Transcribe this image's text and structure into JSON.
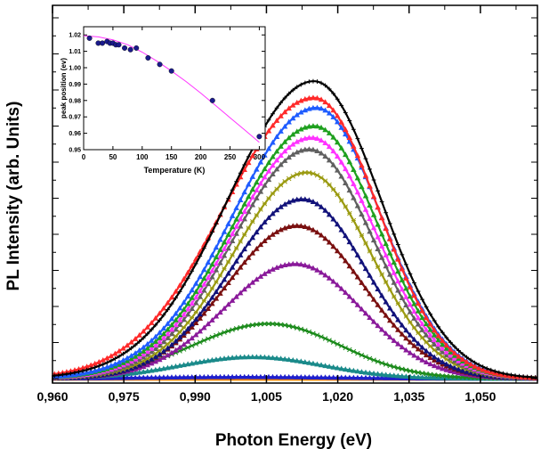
{
  "chart_data": [
    {
      "type": "line",
      "title": "",
      "xlabel": "Photon Energy (eV)",
      "ylabel": "PL Intensity (arb. Units)",
      "xlim": [
        0.96,
        1.062
      ],
      "ylim": [
        0,
        1.0
      ],
      "xticks": [
        0.96,
        0.975,
        0.99,
        1.005,
        1.02,
        1.035,
        1.05
      ],
      "xtick_labels": [
        "0,960",
        "0,975",
        "0,990",
        "1,005",
        "1,020",
        "1,035",
        "1,050"
      ],
      "y_tick_labels_shown": false,
      "grid": false,
      "series": [
        {
          "color": "#000000",
          "peak": 1.015,
          "amplitude": 0.895,
          "sigma_left": 0.018,
          "sigma_right": 0.014,
          "marker": "cross"
        },
        {
          "color": "#ff2a2a",
          "peak": 1.015,
          "amplitude": 0.845,
          "sigma_left": 0.019,
          "sigma_right": 0.0135,
          "marker": "triangle"
        },
        {
          "color": "#1f5cff",
          "peak": 1.0155,
          "amplitude": 0.815,
          "sigma_left": 0.0175,
          "sigma_right": 0.0135,
          "marker": "triangle"
        },
        {
          "color": "#1fa01f",
          "peak": 1.015,
          "amplitude": 0.76,
          "sigma_left": 0.017,
          "sigma_right": 0.0135,
          "marker": "triangle"
        },
        {
          "color": "#ff33ff",
          "peak": 1.0145,
          "amplitude": 0.725,
          "sigma_left": 0.0165,
          "sigma_right": 0.0135,
          "marker": "triangle"
        },
        {
          "color": "#606060",
          "peak": 1.014,
          "amplitude": 0.69,
          "sigma_left": 0.016,
          "sigma_right": 0.0135,
          "marker": "triangle"
        },
        {
          "color": "#9a9a10",
          "peak": 1.0135,
          "amplitude": 0.62,
          "sigma_left": 0.0155,
          "sigma_right": 0.0135,
          "marker": "star"
        },
        {
          "color": "#12127a",
          "peak": 1.0125,
          "amplitude": 0.54,
          "sigma_left": 0.015,
          "sigma_right": 0.0135,
          "marker": "triangle"
        },
        {
          "color": "#7a1010",
          "peak": 1.0115,
          "amplitude": 0.46,
          "sigma_left": 0.015,
          "sigma_right": 0.014,
          "marker": "triangle"
        },
        {
          "color": "#8a1a9a",
          "peak": 1.011,
          "amplitude": 0.345,
          "sigma_left": 0.015,
          "sigma_right": 0.014,
          "marker": "triangle"
        },
        {
          "color": "#1a8a1a",
          "peak": 1.0055,
          "amplitude": 0.165,
          "sigma_left": 0.016,
          "sigma_right": 0.015,
          "marker": "star"
        },
        {
          "color": "#1a8a8a",
          "peak": 1.002,
          "amplitude": 0.065,
          "sigma_left": 0.015,
          "sigma_right": 0.015,
          "marker": "triangle"
        },
        {
          "color": "#2020cc",
          "peak": 1.0,
          "amplitude": 0.005,
          "sigma_left": 0.02,
          "sigma_right": 0.02,
          "marker": "triangle"
        },
        {
          "color": "#ff8800",
          "peak": 1.0,
          "amplitude": 0.0,
          "sigma_left": 0.02,
          "sigma_right": 0.02,
          "marker": "triangle"
        }
      ]
    },
    {
      "type": "scatter",
      "title": "",
      "xlabel": "Temperature (K)",
      "ylabel": "peak position (ev)",
      "xlim": [
        0,
        310
      ],
      "ylim": [
        0.95,
        1.025
      ],
      "xticks": [
        0,
        50,
        100,
        150,
        200,
        250,
        300
      ],
      "yticks": [
        0.95,
        0.96,
        0.97,
        0.98,
        0.99,
        1.0,
        1.01,
        1.02
      ],
      "ytick_labels": [
        "0.95",
        "0.96",
        "0.97",
        "0.98",
        "0.99",
        "1.00",
        "1.01",
        "1.02"
      ],
      "grid": false,
      "marker_color": "#1a1a8c",
      "fit_color": "#ff33ff",
      "points": [
        {
          "x": 10,
          "y": 1.018
        },
        {
          "x": 25,
          "y": 1.015
        },
        {
          "x": 32,
          "y": 1.015
        },
        {
          "x": 40,
          "y": 1.016
        },
        {
          "x": 45,
          "y": 1.015
        },
        {
          "x": 50,
          "y": 1.015
        },
        {
          "x": 55,
          "y": 1.014
        },
        {
          "x": 60,
          "y": 1.014
        },
        {
          "x": 70,
          "y": 1.012
        },
        {
          "x": 80,
          "y": 1.011
        },
        {
          "x": 90,
          "y": 1.012
        },
        {
          "x": 110,
          "y": 1.006
        },
        {
          "x": 130,
          "y": 1.002
        },
        {
          "x": 150,
          "y": 0.998
        },
        {
          "x": 220,
          "y": 0.98
        },
        {
          "x": 300,
          "y": 0.958
        }
      ],
      "fit": [
        {
          "x": 0,
          "y": 1.0195
        },
        {
          "x": 25,
          "y": 1.0188
        },
        {
          "x": 50,
          "y": 1.017
        },
        {
          "x": 75,
          "y": 1.014
        },
        {
          "x": 100,
          "y": 1.0095
        },
        {
          "x": 125,
          "y": 1.004
        },
        {
          "x": 150,
          "y": 0.998
        },
        {
          "x": 175,
          "y": 0.9915
        },
        {
          "x": 200,
          "y": 0.9845
        },
        {
          "x": 225,
          "y": 0.977
        },
        {
          "x": 250,
          "y": 0.9695
        },
        {
          "x": 275,
          "y": 0.962
        },
        {
          "x": 300,
          "y": 0.9545
        }
      ]
    }
  ]
}
